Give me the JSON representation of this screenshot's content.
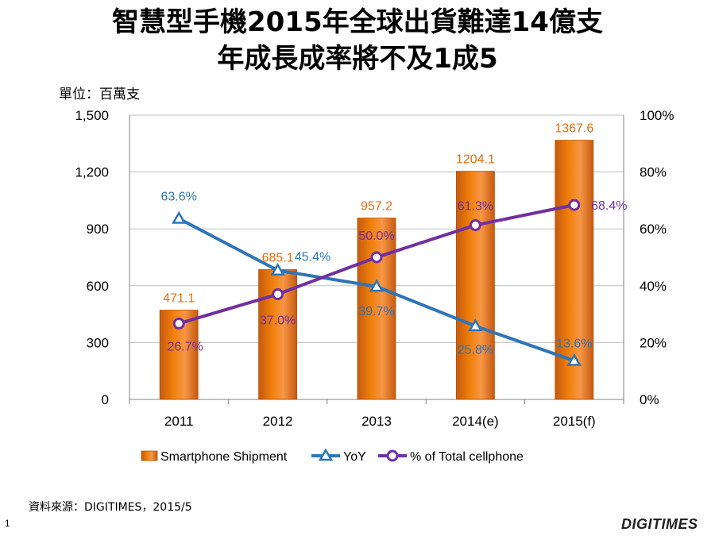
{
  "title_line1": "智慧型手機2015年全球出貨難達14億支",
  "title_line2": "年成長成率將不及1成5",
  "unit_label": "單位：百萬支",
  "source": "資料來源：DIGITIMES，2015/5",
  "page_number": "1",
  "brand": "DIGITIMES",
  "colors": {
    "bar": "#F07F09",
    "yoy": "#2E75B6",
    "share": "#7030A0",
    "grid": "#BFBFBF"
  },
  "chart_data": {
    "type": "bar",
    "categories": [
      "2011",
      "2012",
      "2013",
      "2014(e)",
      "2015(f)"
    ],
    "ylabel": "",
    "xlabel": "",
    "ylim": [
      0,
      1500
    ],
    "yticks": [
      "0",
      "300",
      "600",
      "900",
      "1,200",
      "1,500"
    ],
    "y2lim": [
      0,
      100
    ],
    "y2ticks": [
      "0%",
      "20%",
      "40%",
      "60%",
      "80%",
      "100%"
    ],
    "grid": true,
    "legend_position": "bottom",
    "series": [
      {
        "name": "Smartphone Shipment",
        "type": "bar",
        "axis": "left",
        "values": [
          471.1,
          685.1,
          957.2,
          1204.1,
          1367.6
        ],
        "labels": [
          "471.1",
          "685.1",
          "957.2",
          "1204.1",
          "1367.6"
        ]
      },
      {
        "name": "YoY",
        "type": "line",
        "marker": "triangle",
        "axis": "right",
        "values": [
          63.6,
          45.4,
          39.7,
          25.8,
          13.6
        ],
        "labels": [
          "63.6%",
          "45.4%",
          "39.7%",
          "25.8%",
          "13.6%"
        ]
      },
      {
        "name": "% of Total cellphone",
        "type": "line",
        "marker": "circle",
        "axis": "right",
        "values": [
          26.7,
          37.0,
          50.0,
          61.3,
          68.4
        ],
        "labels": [
          "26.7%",
          "37.0%",
          "50.0%",
          "61.3%",
          "68.4%"
        ]
      }
    ]
  }
}
